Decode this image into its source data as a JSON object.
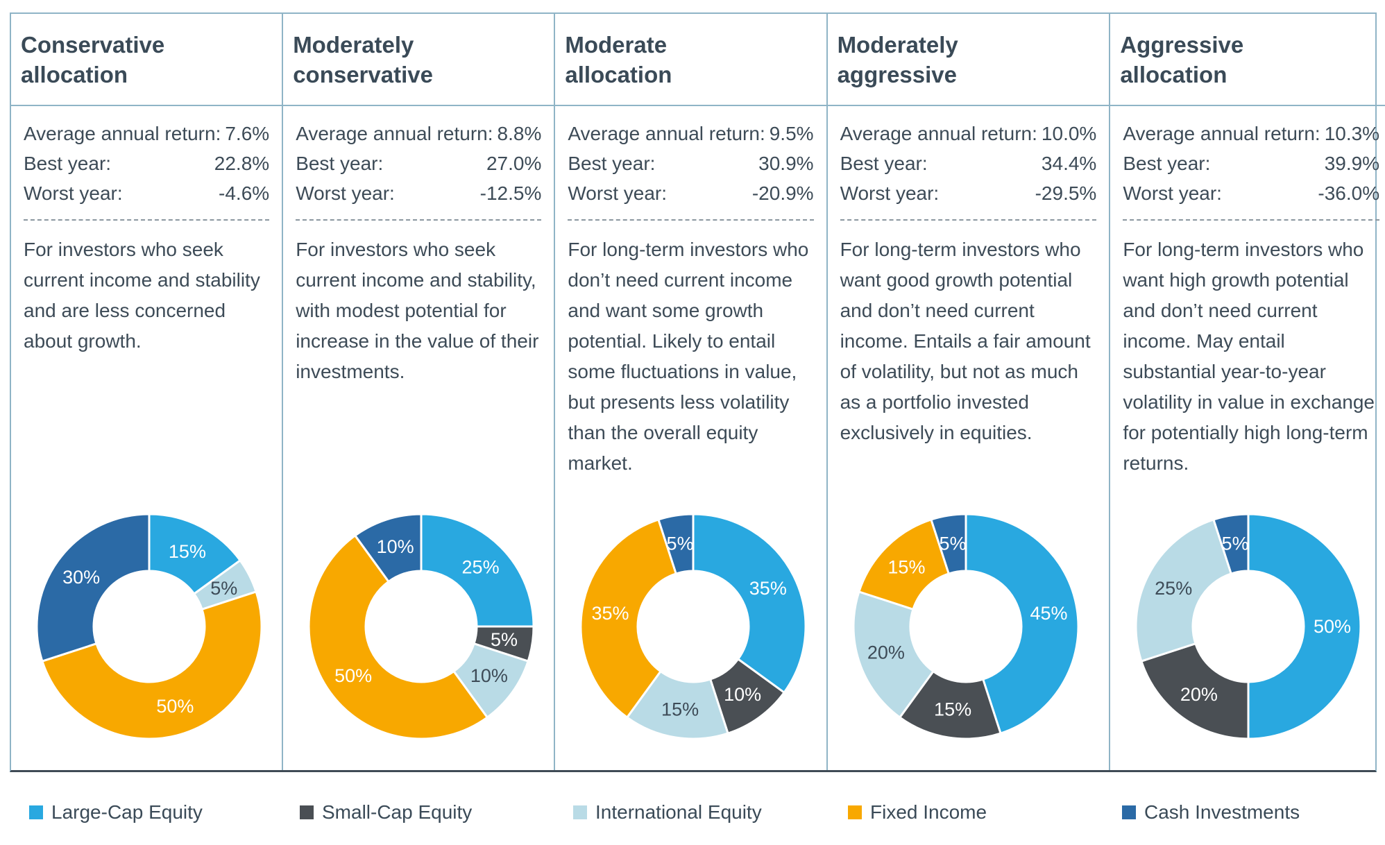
{
  "columns": [
    {
      "title": "Conservative\nallocation",
      "stats": [
        {
          "label": "Average annual return:",
          "value": "7.6%"
        },
        {
          "label": "Best year:",
          "value": "22.8%"
        },
        {
          "label": "Worst year:",
          "value": "-4.6%"
        }
      ],
      "description": "For investors who seek current income and stability and are less concerned about growth."
    },
    {
      "title": "Moderately\nconservative",
      "stats": [
        {
          "label": "Average annual return:",
          "value": "8.8%"
        },
        {
          "label": "Best year:",
          "value": "27.0%"
        },
        {
          "label": "Worst year:",
          "value": "-12.5%"
        }
      ],
      "description": "For investors who seek current income and stability, with modest potential for increase in the value of their investments."
    },
    {
      "title": "Moderate\nallocation",
      "stats": [
        {
          "label": "Average annual return:",
          "value": "9.5%"
        },
        {
          "label": "Best year:",
          "value": "30.9%"
        },
        {
          "label": "Worst year:",
          "value": "-20.9%"
        }
      ],
      "description": "For long-term investors who don’t need current income and want some growth potential. Likely to entail some fluctuations in value, but presents less volatility than the overall equity market."
    },
    {
      "title": "Moderately\naggressive",
      "stats": [
        {
          "label": "Average annual return:",
          "value": "10.0%"
        },
        {
          "label": "Best year:",
          "value": "34.4%"
        },
        {
          "label": "Worst year:",
          "value": "-29.5%"
        }
      ],
      "description": "For long-term investors who want good growth potential and don’t need current income. Entails a fair amount of volatility, but not as much as a portfolio invested exclusively in equities."
    },
    {
      "title": "Aggressive\nallocation",
      "stats": [
        {
          "label": "Average annual return:",
          "value": "10.3%"
        },
        {
          "label": "Best year:",
          "value": "39.9%"
        },
        {
          "label": "Worst year:",
          "value": "-36.0%"
        }
      ],
      "description": "For long-term investors who want high growth potential and don’t need current income. May entail substantial year-to-year volatility in value in exchange for potentially high long-term returns."
    }
  ],
  "legend": [
    {
      "name": "Large-Cap Equity",
      "color": "#29a8e0"
    },
    {
      "name": "Small-Cap Equity",
      "color": "#4a4f54"
    },
    {
      "name": "International Equity",
      "color": "#b9dbe6"
    },
    {
      "name": "Fixed Income",
      "color": "#f8a800"
    },
    {
      "name": "Cash Investments",
      "color": "#2b6aa6"
    }
  ],
  "chart_data": [
    {
      "type": "pie",
      "title": "Conservative allocation",
      "slices": [
        {
          "name": "Large-Cap Equity",
          "value": 15,
          "label": "15%"
        },
        {
          "name": "International Equity",
          "value": 5,
          "label": "5%"
        },
        {
          "name": "Fixed Income",
          "value": 50,
          "label": "50%"
        },
        {
          "name": "Cash Investments",
          "value": 30,
          "label": "30%"
        }
      ]
    },
    {
      "type": "pie",
      "title": "Moderately conservative",
      "slices": [
        {
          "name": "Large-Cap Equity",
          "value": 25,
          "label": "25%"
        },
        {
          "name": "Small-Cap Equity",
          "value": 5,
          "label": "5%"
        },
        {
          "name": "International Equity",
          "value": 10,
          "label": "10%"
        },
        {
          "name": "Fixed Income",
          "value": 50,
          "label": "50%"
        },
        {
          "name": "Cash Investments",
          "value": 10,
          "label": "10%"
        }
      ]
    },
    {
      "type": "pie",
      "title": "Moderate allocation",
      "slices": [
        {
          "name": "Large-Cap Equity",
          "value": 35,
          "label": "35%"
        },
        {
          "name": "Small-Cap Equity",
          "value": 10,
          "label": "10%"
        },
        {
          "name": "International Equity",
          "value": 15,
          "label": "15%"
        },
        {
          "name": "Fixed Income",
          "value": 35,
          "label": "35%"
        },
        {
          "name": "Cash Investments",
          "value": 5,
          "label": "5%"
        }
      ]
    },
    {
      "type": "pie",
      "title": "Moderately aggressive",
      "slices": [
        {
          "name": "Large-Cap Equity",
          "value": 45,
          "label": "45%"
        },
        {
          "name": "Small-Cap Equity",
          "value": 15,
          "label": "15%"
        },
        {
          "name": "International Equity",
          "value": 20,
          "label": "20%"
        },
        {
          "name": "Fixed Income",
          "value": 15,
          "label": "15%"
        },
        {
          "name": "Cash Investments",
          "value": 5,
          "label": "5%"
        }
      ]
    },
    {
      "type": "pie",
      "title": "Aggressive allocation",
      "slices": [
        {
          "name": "Large-Cap Equity",
          "value": 50,
          "label": "50%"
        },
        {
          "name": "Small-Cap Equity",
          "value": 20,
          "label": "20%"
        },
        {
          "name": "International Equity",
          "value": 25,
          "label": "25%"
        },
        {
          "name": "Cash Investments",
          "value": 5,
          "label": "5%"
        }
      ]
    }
  ]
}
